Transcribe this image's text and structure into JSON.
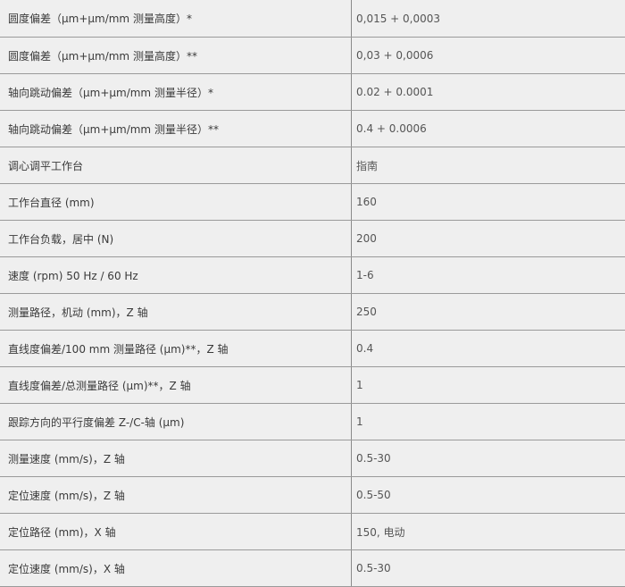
{
  "rows": [
    {
      "label": "圆度偏差（μm+μm/mm 测量高度）*",
      "value": "0,015 + 0,0003"
    },
    {
      "label": "圆度偏差（μm+μm/mm 测量高度）**",
      "value": "0,03 + 0,0006"
    },
    {
      "label": "轴向跳动偏差（μm+μm/mm 测量半径）*",
      "value": "0.02 + 0.0001"
    },
    {
      "label": "轴向跳动偏差（μm+μm/mm 测量半径）**",
      "value": "0.4 + 0.0006"
    },
    {
      "label": "调心调平工作台",
      "value": "指南"
    },
    {
      "label": "工作台直径 (mm)",
      "value": "160"
    },
    {
      "label": "工作台负载，居中 (N)",
      "value": "200"
    },
    {
      "label": "速度 (rpm) 50 Hz / 60 Hz",
      "value": "1-6"
    },
    {
      "label": "测量路径，机动 (mm)，Z 轴",
      "value": "250"
    },
    {
      "label": "直线度偏差/100 mm 测量路径 (μm)**，Z 轴",
      "value": "0.4"
    },
    {
      "label": "直线度偏差/总测量路径 (μm)**，Z 轴",
      "value": "1"
    },
    {
      "label": "跟踪方向的平行度偏差 Z-/C-轴 (μm)",
      "value": "1"
    },
    {
      "label": "测量速度 (mm/s)，Z 轴",
      "value": "0.5-30"
    },
    {
      "label": "定位速度 (mm/s)，Z 轴",
      "value": "0.5-50"
    },
    {
      "label": "定位路径 (mm)，X 轴",
      "value": "150, 电动"
    },
    {
      "label": "定位速度 (mm/s)，X 轴",
      "value": "0.5-30"
    }
  ]
}
